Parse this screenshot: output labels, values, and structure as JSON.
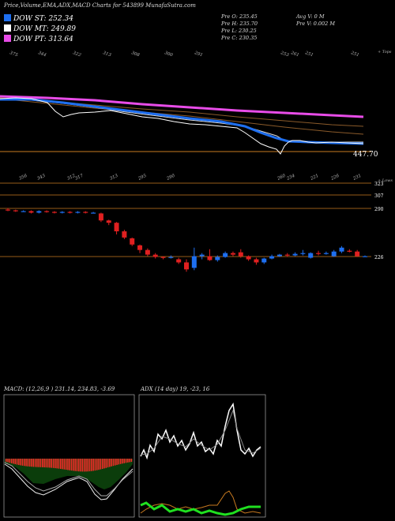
{
  "header": {
    "title": "Price,Volume,EMA,ADX,MACD Charts for 543899 MunafaSutra.com",
    "legend": [
      {
        "label": "DOW ST: 252.34",
        "color": "#1e6ff0"
      },
      {
        "label": "DOW MT: 249.89",
        "color": "#ffffff"
      },
      {
        "label": "DOW PT: 313.64",
        "color": "#e84ce8"
      }
    ],
    "quote": {
      "prev_open": "Pre   O: 235.45",
      "prev_high": "Pre   H: 235.70",
      "prev_low": "Pre   L: 230.25",
      "prev_close": "Pre   C: 230.35",
      "avg_vol": "Avg V: 0   M",
      "prev_vol": "Pre   V: 0.002  M"
    }
  },
  "colors": {
    "up": "#1e6ff0",
    "down": "#e02020",
    "guide": "#c87a20",
    "ema_pink": "#e84ce8",
    "ema_blue": "#1e6ff0"
  },
  "top_panel": {
    "label_top": "+ Tops",
    "label_price": "447.70",
    "top_values": [
      "375",
      "344",
      "322",
      "313",
      "308",
      "300",
      "291",
      "253",
      "261",
      "251",
      "251"
    ]
  },
  "price_panel": {
    "label_lows": "+ Lows",
    "low_values": [
      "356",
      "343",
      "312",
      "317",
      "313",
      "295",
      "290",
      "260",
      "234",
      "221",
      "226",
      "231"
    ],
    "axis_labels": [
      "323",
      "307",
      "290",
      "226"
    ]
  },
  "macd": {
    "title": "MACD: (12,26,9 ) 231.14,  234.83, -3.69"
  },
  "adx": {
    "title": "ADX   (14  day) 19,  -23,  16"
  },
  "chart_data": {
    "type": "candlestick",
    "title": "Price,Volume,EMA,ADX,MACD Charts for 543899 MunafaSutra.com",
    "candles": [
      {
        "o": 296,
        "c": 295,
        "h": 298,
        "l": 294
      },
      {
        "o": 295,
        "c": 294,
        "h": 296,
        "l": 293
      },
      {
        "o": 294,
        "c": 294,
        "h": 295,
        "l": 293
      },
      {
        "o": 294,
        "c": 292,
        "h": 295,
        "l": 291
      },
      {
        "o": 292,
        "c": 294,
        "h": 295,
        "l": 291
      },
      {
        "o": 294,
        "c": 293,
        "h": 295,
        "l": 292
      },
      {
        "o": 293,
        "c": 292,
        "h": 294,
        "l": 291
      },
      {
        "o": 292,
        "c": 293,
        "h": 294,
        "l": 291
      },
      {
        "o": 293,
        "c": 292,
        "h": 294,
        "l": 291
      },
      {
        "o": 292,
        "c": 293,
        "h": 294,
        "l": 291
      },
      {
        "o": 293,
        "c": 292,
        "h": 294,
        "l": 291
      },
      {
        "o": 292,
        "c": 292,
        "h": 293,
        "l": 291
      },
      {
        "o": 291,
        "c": 282,
        "h": 292,
        "l": 280
      },
      {
        "o": 282,
        "c": 279,
        "h": 283,
        "l": 276
      },
      {
        "o": 279,
        "c": 268,
        "h": 280,
        "l": 264
      },
      {
        "o": 268,
        "c": 260,
        "h": 270,
        "l": 258
      },
      {
        "o": 259,
        "c": 251,
        "h": 260,
        "l": 249
      },
      {
        "o": 250,
        "c": 244,
        "h": 251,
        "l": 240
      },
      {
        "o": 244,
        "c": 238,
        "h": 246,
        "l": 236
      },
      {
        "o": 238,
        "c": 235,
        "h": 240,
        "l": 233
      },
      {
        "o": 235,
        "c": 234,
        "h": 236,
        "l": 232
      },
      {
        "o": 234,
        "c": 235,
        "h": 237,
        "l": 233
      },
      {
        "o": 232,
        "c": 228,
        "h": 234,
        "l": 226
      },
      {
        "o": 228,
        "c": 219,
        "h": 232,
        "l": 216
      },
      {
        "o": 221,
        "c": 236,
        "h": 247,
        "l": 218
      },
      {
        "o": 236,
        "c": 238,
        "h": 240,
        "l": 232
      },
      {
        "o": 236,
        "c": 231,
        "h": 245,
        "l": 230
      },
      {
        "o": 231,
        "c": 235,
        "h": 237,
        "l": 229
      },
      {
        "o": 235,
        "c": 240,
        "h": 242,
        "l": 234
      },
      {
        "o": 240,
        "c": 238,
        "h": 242,
        "l": 236
      },
      {
        "o": 241,
        "c": 236,
        "h": 245,
        "l": 234
      },
      {
        "o": 236,
        "c": 232,
        "h": 237,
        "l": 230
      },
      {
        "o": 232,
        "c": 228,
        "h": 234,
        "l": 225
      },
      {
        "o": 228,
        "c": 233,
        "h": 234,
        "l": 226
      },
      {
        "o": 233,
        "c": 236,
        "h": 238,
        "l": 232
      },
      {
        "o": 236,
        "c": 238,
        "h": 239,
        "l": 235
      },
      {
        "o": 238,
        "c": 237,
        "h": 240,
        "l": 235
      },
      {
        "o": 237,
        "c": 239,
        "h": 241,
        "l": 236
      },
      {
        "o": 239,
        "c": 240,
        "h": 244,
        "l": 237
      },
      {
        "o": 234,
        "c": 240,
        "h": 241,
        "l": 233
      },
      {
        "o": 240,
        "c": 239,
        "h": 243,
        "l": 237
      },
      {
        "o": 239,
        "c": 240,
        "h": 242,
        "l": 238
      },
      {
        "o": 236,
        "c": 242,
        "h": 244,
        "l": 235
      },
      {
        "o": 242,
        "c": 247,
        "h": 249,
        "l": 240
      },
      {
        "o": 243,
        "c": 242,
        "h": 245,
        "l": 241
      },
      {
        "o": 242,
        "c": 236,
        "h": 244,
        "l": 235
      },
      {
        "o": 236,
        "c": 236,
        "h": 237,
        "l": 235
      }
    ],
    "ylim": [
      200,
      330
    ]
  }
}
